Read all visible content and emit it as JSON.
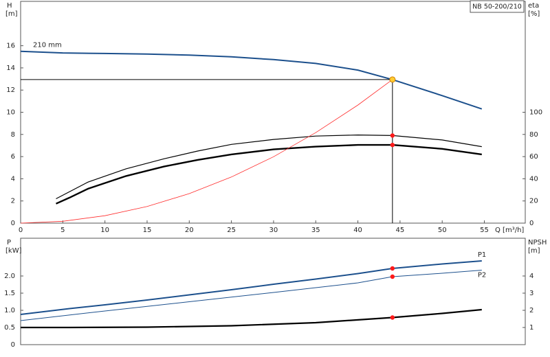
{
  "chart_data": [
    {
      "type": "line",
      "title": "NB 50-200/210",
      "ylabel": "H",
      "yunit": "[m]",
      "y2label": "eta",
      "y2unit": "[%]",
      "xlabel": "Q [m³/h]",
      "xlim": [
        0,
        59.85
      ],
      "xticks": [
        0,
        5,
        10,
        15,
        20,
        25,
        30,
        35,
        40,
        45,
        50,
        55
      ],
      "ylim": [
        0,
        20
      ],
      "yticks": [
        0,
        2,
        4,
        6,
        8,
        10,
        12,
        14,
        16
      ],
      "y2lim": [
        0,
        200
      ],
      "y2ticks": [
        0,
        20,
        40,
        60,
        80,
        100
      ],
      "series": [
        {
          "name": "210 mm",
          "color": "#1b4f8c",
          "line_width": 2,
          "x": [
            0,
            5,
            10,
            15,
            20,
            25,
            30,
            35,
            40,
            44.1,
            50,
            54.7
          ],
          "values": [
            15.5,
            15.35,
            15.3,
            15.25,
            15.15,
            15.0,
            14.75,
            14.4,
            13.8,
            12.95,
            11.5,
            10.3
          ]
        },
        {
          "color": "#000000",
          "line_width": 1.2,
          "axis": "y2",
          "x": [
            4.2,
            8,
            12.5,
            17,
            21,
            25,
            30,
            35,
            40,
            44.1,
            50,
            54.7
          ],
          "values": [
            22,
            37,
            49,
            58,
            65,
            71,
            75.5,
            78.5,
            79.5,
            79,
            75,
            69
          ]
        },
        {
          "color": "#000000",
          "line_width": 2.4,
          "axis": "y2",
          "x": [
            4.2,
            5.8,
            8,
            12.5,
            17,
            21,
            25,
            30,
            35,
            40,
            44.1,
            50,
            54.7
          ],
          "values": [
            17.5,
            23,
            31,
            42.5,
            51,
            57,
            62,
            66.5,
            69,
            70.5,
            70.5,
            67,
            62
          ]
        },
        {
          "color": "#ff2a2a",
          "line_width": 0.8,
          "x": [
            0,
            5,
            10,
            15,
            20,
            25,
            30,
            35,
            40,
            44.1
          ],
          "values": [
            0,
            0.17,
            0.67,
            1.5,
            2.66,
            4.16,
            5.99,
            8.16,
            10.65,
            12.95
          ]
        }
      ],
      "operating_point": {
        "x": 44.1,
        "y": 12.95,
        "color": "#ffcc33"
      },
      "markers": [
        {
          "x": 44.1,
          "y": 79,
          "axis": "y2",
          "color": "#ff1a1a"
        },
        {
          "x": 44.1,
          "y": 70.5,
          "axis": "y2",
          "color": "#ff1a1a"
        }
      ]
    },
    {
      "type": "line",
      "ylabel": "P",
      "yunit": "[kW]",
      "y2label": "NPSH",
      "y2unit": "[m]",
      "xlim": [
        0,
        59.85
      ],
      "ylim": [
        0,
        3.1
      ],
      "yticks": [
        0,
        0.5,
        {
          "value": 1,
          "label": "1.0"
        },
        1.5,
        {
          "value": 2,
          "label": "2.0"
        }
      ],
      "y2lim": [
        0,
        6.2
      ],
      "y2ticks": [
        1,
        2,
        3,
        4
      ],
      "series": [
        {
          "name": "P1",
          "color": "#1b4f8c",
          "line_width": 2,
          "x": [
            0,
            5.8,
            10,
            15,
            20,
            25,
            30,
            35,
            40,
            44.1,
            50,
            54.7
          ],
          "values": [
            0.88,
            1.05,
            1.16,
            1.3,
            1.45,
            1.6,
            1.76,
            1.91,
            2.07,
            2.22,
            2.35,
            2.44
          ]
        },
        {
          "name": "P2",
          "color": "#1b4f8c",
          "line_width": 1,
          "x": [
            0,
            10,
            20,
            30,
            40,
            44.1,
            50,
            54.7
          ],
          "values": [
            0.7,
            0.98,
            1.25,
            1.52,
            1.8,
            1.98,
            2.08,
            2.17
          ]
        },
        {
          "color": "#000000",
          "line_width": 2.2,
          "axis": "y2",
          "x": [
            0,
            5.8,
            15,
            25,
            35,
            44.1,
            50,
            54.7
          ],
          "values": [
            1.0,
            1.0,
            1.02,
            1.1,
            1.28,
            1.58,
            1.82,
            2.04
          ]
        }
      ],
      "markers": [
        {
          "x": 44.1,
          "y": 2.22,
          "color": "#ff1a1a"
        },
        {
          "x": 44.1,
          "y": 1.98,
          "color": "#ff1a1a"
        },
        {
          "x": 44.1,
          "y": 1.58,
          "axis": "y2",
          "color": "#ff1a1a"
        }
      ]
    }
  ]
}
